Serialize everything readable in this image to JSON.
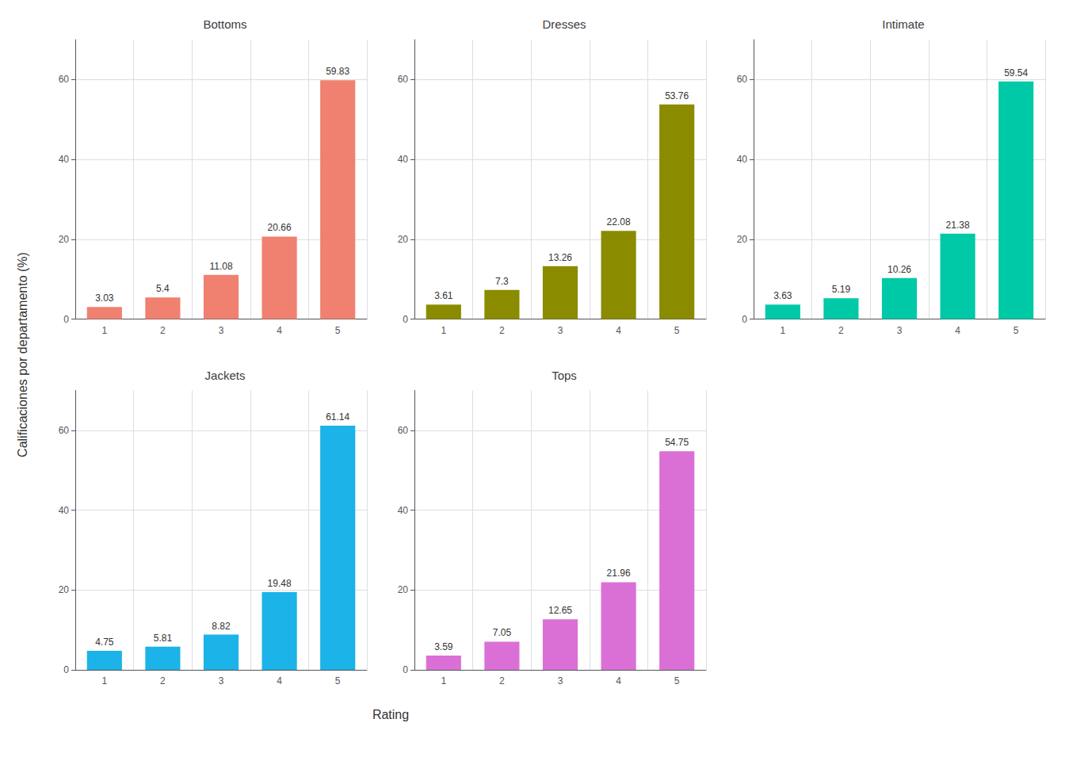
{
  "chart_data": [
    {
      "type": "bar",
      "title": "Bottoms",
      "categories": [
        "1",
        "2",
        "3",
        "4",
        "5"
      ],
      "values": [
        3.03,
        5.4,
        11.08,
        20.66,
        59.83
      ],
      "color": "#F08070",
      "ylim": [
        0,
        70
      ],
      "yticks": [
        0,
        20,
        40,
        60
      ],
      "grid": true,
      "data_labels": true
    },
    {
      "type": "bar",
      "title": "Dresses",
      "categories": [
        "1",
        "2",
        "3",
        "4",
        "5"
      ],
      "values": [
        3.61,
        7.3,
        13.26,
        22.08,
        53.76
      ],
      "color": "#8B8B00",
      "ylim": [
        0,
        70
      ],
      "yticks": [
        0,
        20,
        40,
        60
      ],
      "grid": true,
      "data_labels": true
    },
    {
      "type": "bar",
      "title": "Intimate",
      "categories": [
        "1",
        "2",
        "3",
        "4",
        "5"
      ],
      "values": [
        3.63,
        5.19,
        10.26,
        21.38,
        59.54
      ],
      "color": "#00C9A7",
      "ylim": [
        0,
        70
      ],
      "yticks": [
        0,
        20,
        40,
        60
      ],
      "grid": true,
      "data_labels": true
    },
    {
      "type": "bar",
      "title": "Jackets",
      "categories": [
        "1",
        "2",
        "3",
        "4",
        "5"
      ],
      "values": [
        4.75,
        5.81,
        8.82,
        19.48,
        61.14
      ],
      "color": "#1BB3E8",
      "ylim": [
        0,
        70
      ],
      "yticks": [
        0,
        20,
        40,
        60
      ],
      "grid": true,
      "data_labels": true
    },
    {
      "type": "bar",
      "title": "Tops",
      "categories": [
        "1",
        "2",
        "3",
        "4",
        "5"
      ],
      "values": [
        3.59,
        7.05,
        12.65,
        21.96,
        54.75
      ],
      "color": "#DA70D6",
      "ylim": [
        0,
        70
      ],
      "yticks": [
        0,
        20,
        40,
        60
      ],
      "grid": true,
      "data_labels": true
    }
  ],
  "xlabel": "Rating",
  "ylabel": "Calificaciones por departamento (%)"
}
